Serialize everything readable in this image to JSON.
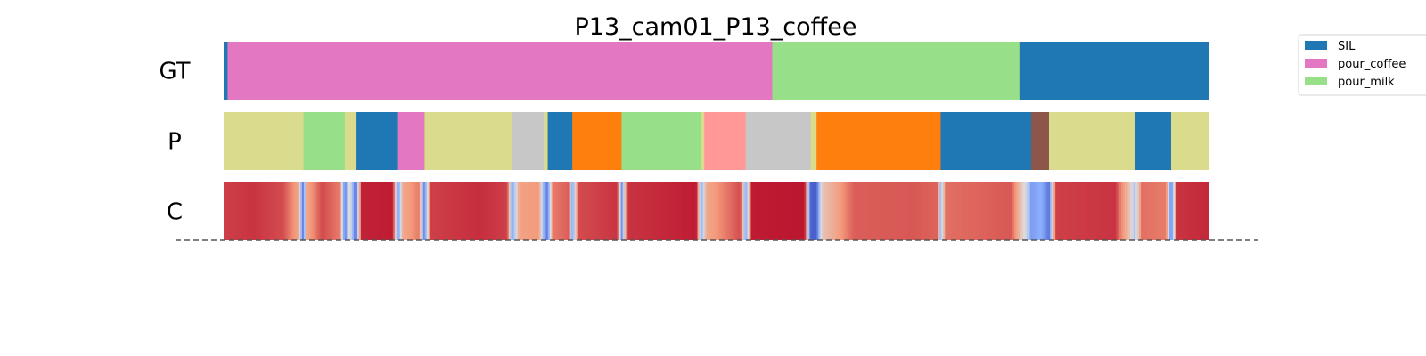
{
  "chart_data": {
    "type": "segmentation-timeline",
    "title": "P13_cam01_P13_coffee",
    "rows": [
      {
        "label": "GT",
        "segments": [
          {
            "start": 0.0,
            "end": 0.004,
            "color": "#1f77b4"
          },
          {
            "start": 0.004,
            "end": 0.557,
            "color": "#e377c2"
          },
          {
            "start": 0.557,
            "end": 0.808,
            "color": "#98df8a"
          },
          {
            "start": 0.808,
            "end": 1.0,
            "color": "#1f77b4"
          }
        ]
      },
      {
        "label": "P",
        "segments": [
          {
            "start": 0.0,
            "end": 0.081,
            "color": "#dbdb8d"
          },
          {
            "start": 0.081,
            "end": 0.123,
            "color": "#98df8a"
          },
          {
            "start": 0.123,
            "end": 0.134,
            "color": "#dbdb8d"
          },
          {
            "start": 0.134,
            "end": 0.177,
            "color": "#1f77b4"
          },
          {
            "start": 0.177,
            "end": 0.204,
            "color": "#e377c2"
          },
          {
            "start": 0.204,
            "end": 0.293,
            "color": "#dbdb8d"
          },
          {
            "start": 0.293,
            "end": 0.325,
            "color": "#c7c7c7"
          },
          {
            "start": 0.325,
            "end": 0.329,
            "color": "#dbdb8d"
          },
          {
            "start": 0.329,
            "end": 0.354,
            "color": "#1f77b4"
          },
          {
            "start": 0.354,
            "end": 0.404,
            "color": "#ff7f0e"
          },
          {
            "start": 0.404,
            "end": 0.485,
            "color": "#98df8a"
          },
          {
            "start": 0.485,
            "end": 0.488,
            "color": "#dbdb8d"
          },
          {
            "start": 0.488,
            "end": 0.53,
            "color": "#ff9896"
          },
          {
            "start": 0.53,
            "end": 0.596,
            "color": "#c7c7c7"
          },
          {
            "start": 0.596,
            "end": 0.602,
            "color": "#dbdb8d"
          },
          {
            "start": 0.602,
            "end": 0.728,
            "color": "#ff7f0e"
          },
          {
            "start": 0.728,
            "end": 0.82,
            "color": "#1f77b4"
          },
          {
            "start": 0.82,
            "end": 0.838,
            "color": "#8c564b"
          },
          {
            "start": 0.838,
            "end": 0.925,
            "color": "#dbdb8d"
          },
          {
            "start": 0.925,
            "end": 0.962,
            "color": "#1f77b4"
          },
          {
            "start": 0.962,
            "end": 1.0,
            "color": "#dbdb8d"
          }
        ]
      },
      {
        "label": "C",
        "colormap": "coolwarm",
        "confidence": [
          {
            "pos": 0.0,
            "value": 0.9
          },
          {
            "pos": 0.03,
            "value": 0.92
          },
          {
            "pos": 0.06,
            "value": 0.88
          },
          {
            "pos": 0.075,
            "value": 0.72
          },
          {
            "pos": 0.081,
            "value": 0.08
          },
          {
            "pos": 0.084,
            "value": 0.7
          },
          {
            "pos": 0.1,
            "value": 0.88
          },
          {
            "pos": 0.118,
            "value": 0.8
          },
          {
            "pos": 0.123,
            "value": 0.1
          },
          {
            "pos": 0.128,
            "value": 0.55
          },
          {
            "pos": 0.134,
            "value": 0.05
          },
          {
            "pos": 0.14,
            "value": 0.95
          },
          {
            "pos": 0.172,
            "value": 0.96
          },
          {
            "pos": 0.177,
            "value": 0.15
          },
          {
            "pos": 0.182,
            "value": 0.7
          },
          {
            "pos": 0.198,
            "value": 0.8
          },
          {
            "pos": 0.204,
            "value": 0.1
          },
          {
            "pos": 0.21,
            "value": 0.9
          },
          {
            "pos": 0.26,
            "value": 0.93
          },
          {
            "pos": 0.288,
            "value": 0.9
          },
          {
            "pos": 0.293,
            "value": 0.2
          },
          {
            "pos": 0.3,
            "value": 0.72
          },
          {
            "pos": 0.32,
            "value": 0.75
          },
          {
            "pos": 0.325,
            "value": 0.25
          },
          {
            "pos": 0.329,
            "value": 0.1
          },
          {
            "pos": 0.334,
            "value": 0.8
          },
          {
            "pos": 0.35,
            "value": 0.85
          },
          {
            "pos": 0.354,
            "value": 0.2
          },
          {
            "pos": 0.36,
            "value": 0.88
          },
          {
            "pos": 0.4,
            "value": 0.92
          },
          {
            "pos": 0.404,
            "value": 0.15
          },
          {
            "pos": 0.41,
            "value": 0.92
          },
          {
            "pos": 0.48,
            "value": 0.96
          },
          {
            "pos": 0.485,
            "value": 0.25
          },
          {
            "pos": 0.49,
            "value": 0.7
          },
          {
            "pos": 0.525,
            "value": 0.88
          },
          {
            "pos": 0.53,
            "value": 0.2
          },
          {
            "pos": 0.536,
            "value": 0.96
          },
          {
            "pos": 0.59,
            "value": 0.97
          },
          {
            "pos": 0.596,
            "value": 0.05
          },
          {
            "pos": 0.602,
            "value": 0.05
          },
          {
            "pos": 0.608,
            "value": 0.6
          },
          {
            "pos": 0.64,
            "value": 0.85
          },
          {
            "pos": 0.7,
            "value": 0.86
          },
          {
            "pos": 0.725,
            "value": 0.84
          },
          {
            "pos": 0.728,
            "value": 0.3
          },
          {
            "pos": 0.733,
            "value": 0.82
          },
          {
            "pos": 0.8,
            "value": 0.86
          },
          {
            "pos": 0.815,
            "value": 0.45
          },
          {
            "pos": 0.82,
            "value": 0.2
          },
          {
            "pos": 0.83,
            "value": 0.25
          },
          {
            "pos": 0.838,
            "value": 0.1
          },
          {
            "pos": 0.845,
            "value": 0.9
          },
          {
            "pos": 0.905,
            "value": 0.92
          },
          {
            "pos": 0.92,
            "value": 0.6
          },
          {
            "pos": 0.925,
            "value": 0.35
          },
          {
            "pos": 0.932,
            "value": 0.82
          },
          {
            "pos": 0.957,
            "value": 0.8
          },
          {
            "pos": 0.962,
            "value": 0.1
          },
          {
            "pos": 0.968,
            "value": 0.92
          },
          {
            "pos": 1.0,
            "value": 0.94
          }
        ]
      }
    ],
    "legend": {
      "placement": "top-right",
      "entries": [
        {
          "label": "SIL",
          "color": "#1f77b4"
        },
        {
          "label": "pour_coffee",
          "color": "#e377c2"
        },
        {
          "label": "pour_milk",
          "color": "#98df8a"
        }
      ]
    },
    "baseline": "dashed"
  }
}
